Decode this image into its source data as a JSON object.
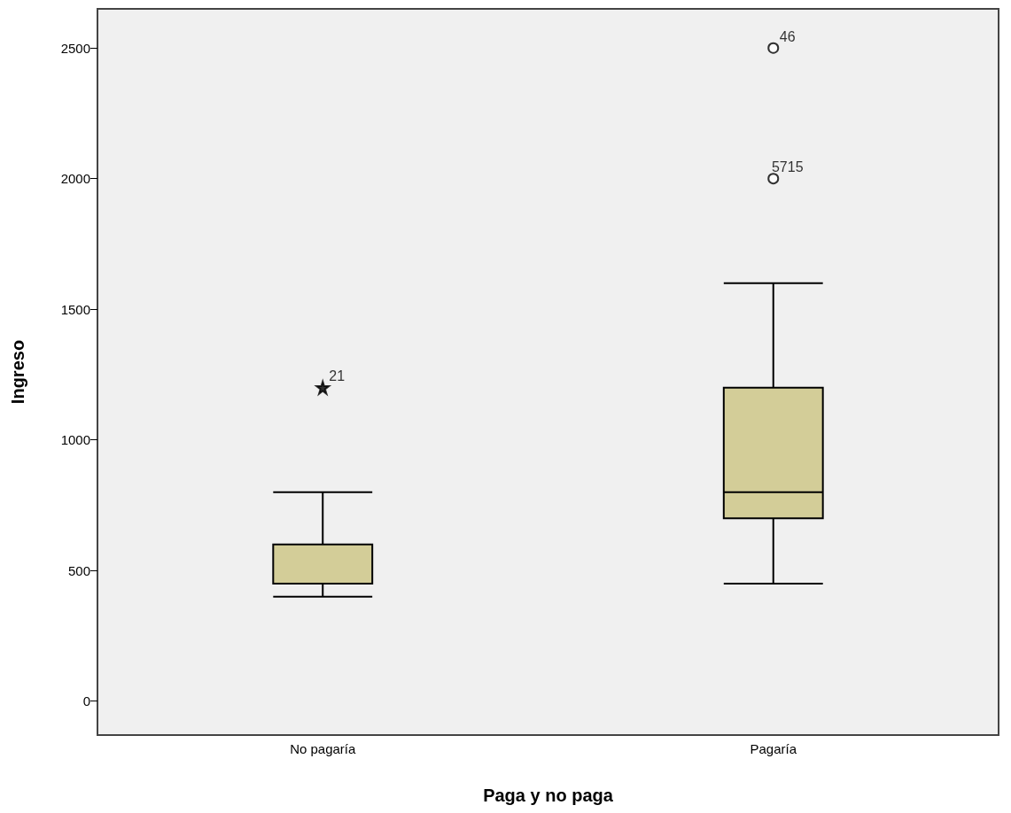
{
  "chart_data": {
    "type": "box",
    "xlabel": "Paga y no paga",
    "ylabel": "Ingreso",
    "categories": [
      "No pagaría",
      "Pagaría"
    ],
    "ylim": [
      -130,
      2650
    ],
    "yticks": [
      0,
      500,
      1000,
      1500,
      2000,
      2500
    ],
    "grid": false,
    "series": [
      {
        "color": "#d3cd98",
        "boxes": [
          {
            "low": 400,
            "q1": 450,
            "median": 600,
            "q3": 600,
            "high": 800
          },
          {
            "low": 450,
            "q1": 700,
            "median": 800,
            "q3": 1200,
            "high": 1600
          }
        ]
      },
      {
        "type": "scatter",
        "color": "#000000",
        "marker": "star",
        "x": [
          "No pagaría"
        ],
        "values": [
          1200
        ]
      },
      {
        "type": "scatter",
        "color": "#000000",
        "marker": "circle",
        "x": [
          "Pagaría",
          "Pagaría"
        ],
        "values": [
          2500,
          2000
        ]
      }
    ],
    "annotations": [
      {
        "text": "21",
        "x": "No pagaría",
        "y": 1200
      },
      {
        "text": "46",
        "x": "Pagaría",
        "y": 2500
      },
      {
        "text": "5715",
        "x": "Pagaría",
        "y": 2000
      }
    ]
  }
}
